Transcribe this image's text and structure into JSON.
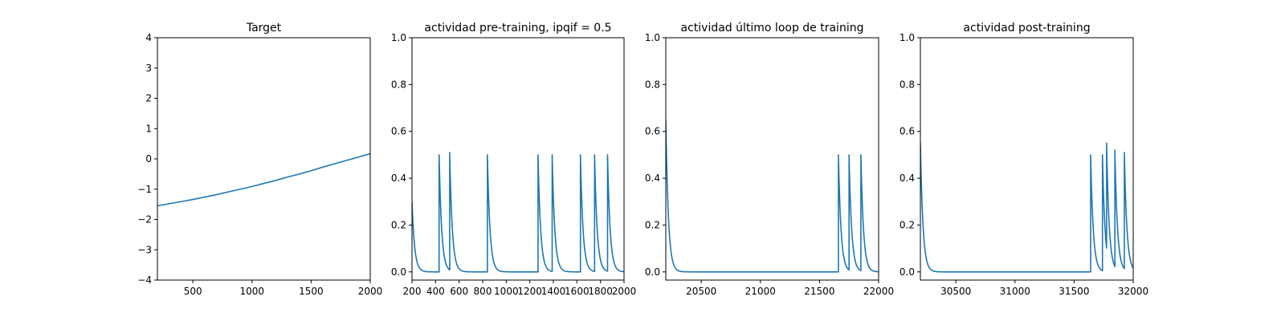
{
  "figure": {
    "background": "#ffffff"
  },
  "chart_data": [
    {
      "type": "line",
      "title": "Target",
      "xlim": [
        200,
        2000
      ],
      "ylim": [
        -4,
        4
      ],
      "xticks": [
        500,
        1000,
        1500,
        2000
      ],
      "yticks": [
        -4,
        -3,
        -2,
        -1,
        0,
        1,
        2,
        3,
        4
      ],
      "x_tick_labels": [
        "500",
        "1000",
        "1500",
        "2000"
      ],
      "y_tick_labels": [
        "−4",
        "−3",
        "−2",
        "−1",
        "0",
        "1",
        "2",
        "3",
        "4"
      ],
      "grid": false,
      "series": [
        {
          "color": "#1f77b4",
          "x": [
            200,
            300,
            400,
            500,
            600,
            700,
            800,
            900,
            1000,
            1100,
            1200,
            1300,
            1400,
            1500,
            1600,
            1700,
            1800,
            1900,
            2000
          ],
          "y": [
            -1.55,
            -1.48,
            -1.41,
            -1.34,
            -1.26,
            -1.18,
            -1.09,
            -1.0,
            -0.91,
            -0.81,
            -0.71,
            -0.6,
            -0.5,
            -0.39,
            -0.27,
            -0.16,
            -0.05,
            0.06,
            0.17
          ]
        }
      ]
    },
    {
      "type": "line",
      "title": "actividad pre-training, ipqif = 0.5",
      "xlim": [
        200,
        2000
      ],
      "ylim": [
        -0.035,
        1.0
      ],
      "xticks": [
        200,
        400,
        600,
        800,
        1000,
        1200,
        1400,
        1600,
        1800,
        2000
      ],
      "yticks": [
        0.0,
        0.2,
        0.4,
        0.6,
        0.8,
        1.0
      ],
      "x_tick_labels": [
        "200",
        "400",
        "600",
        "800",
        "1000",
        "1200",
        "1400",
        "1600",
        "1800",
        "2000"
      ],
      "y_tick_labels": [
        "0.0",
        "0.2",
        "0.4",
        "0.6",
        "0.8",
        "1.0"
      ],
      "grid": false,
      "decay": {
        "start_value": 0.3,
        "tau": 22
      },
      "series": [
        {
          "color": "#1f77b4",
          "spikes": [
            {
              "x": 430,
              "y": 0.5
            },
            {
              "x": 520,
              "y": 0.51
            },
            {
              "x": 840,
              "y": 0.5
            },
            {
              "x": 1270,
              "y": 0.5
            },
            {
              "x": 1390,
              "y": 0.5
            },
            {
              "x": 1630,
              "y": 0.5
            },
            {
              "x": 1750,
              "y": 0.5
            },
            {
              "x": 1860,
              "y": 0.5
            }
          ]
        }
      ]
    },
    {
      "type": "line",
      "title": "actividad último loop de training",
      "xlim": [
        20200,
        22000
      ],
      "ylim": [
        -0.035,
        1.0
      ],
      "xticks": [
        20500,
        21000,
        21500,
        22000
      ],
      "yticks": [
        0.0,
        0.2,
        0.4,
        0.6,
        0.8,
        1.0
      ],
      "x_tick_labels": [
        "20500",
        "21000",
        "21500",
        "22000"
      ],
      "y_tick_labels": [
        "0.0",
        "0.2",
        "0.4",
        "0.6",
        "0.8",
        "1.0"
      ],
      "grid": false,
      "decay": {
        "start_value": 0.65,
        "tau": 22
      },
      "series": [
        {
          "color": "#1f77b4",
          "spikes": [
            {
              "x": 21660,
              "y": 0.5
            },
            {
              "x": 21750,
              "y": 0.5
            },
            {
              "x": 21850,
              "y": 0.5
            }
          ]
        }
      ]
    },
    {
      "type": "line",
      "title": "actividad post-training",
      "xlim": [
        30200,
        32000
      ],
      "ylim": [
        -0.035,
        1.0
      ],
      "xticks": [
        30500,
        31000,
        31500,
        32000
      ],
      "yticks": [
        0.0,
        0.2,
        0.4,
        0.6,
        0.8,
        1.0
      ],
      "x_tick_labels": [
        "30500",
        "31000",
        "31500",
        "32000"
      ],
      "y_tick_labels": [
        "0.0",
        "0.2",
        "0.4",
        "0.6",
        "0.8",
        "1.0"
      ],
      "grid": false,
      "decay": {
        "start_value": 0.55,
        "tau": 22
      },
      "series": [
        {
          "color": "#1f77b4",
          "spikes": [
            {
              "x": 31640,
              "y": 0.5
            },
            {
              "x": 31740,
              "y": 0.5
            },
            {
              "x": 31775,
              "y": 0.55
            },
            {
              "x": 31845,
              "y": 0.52
            },
            {
              "x": 31925,
              "y": 0.51
            }
          ]
        }
      ]
    }
  ]
}
